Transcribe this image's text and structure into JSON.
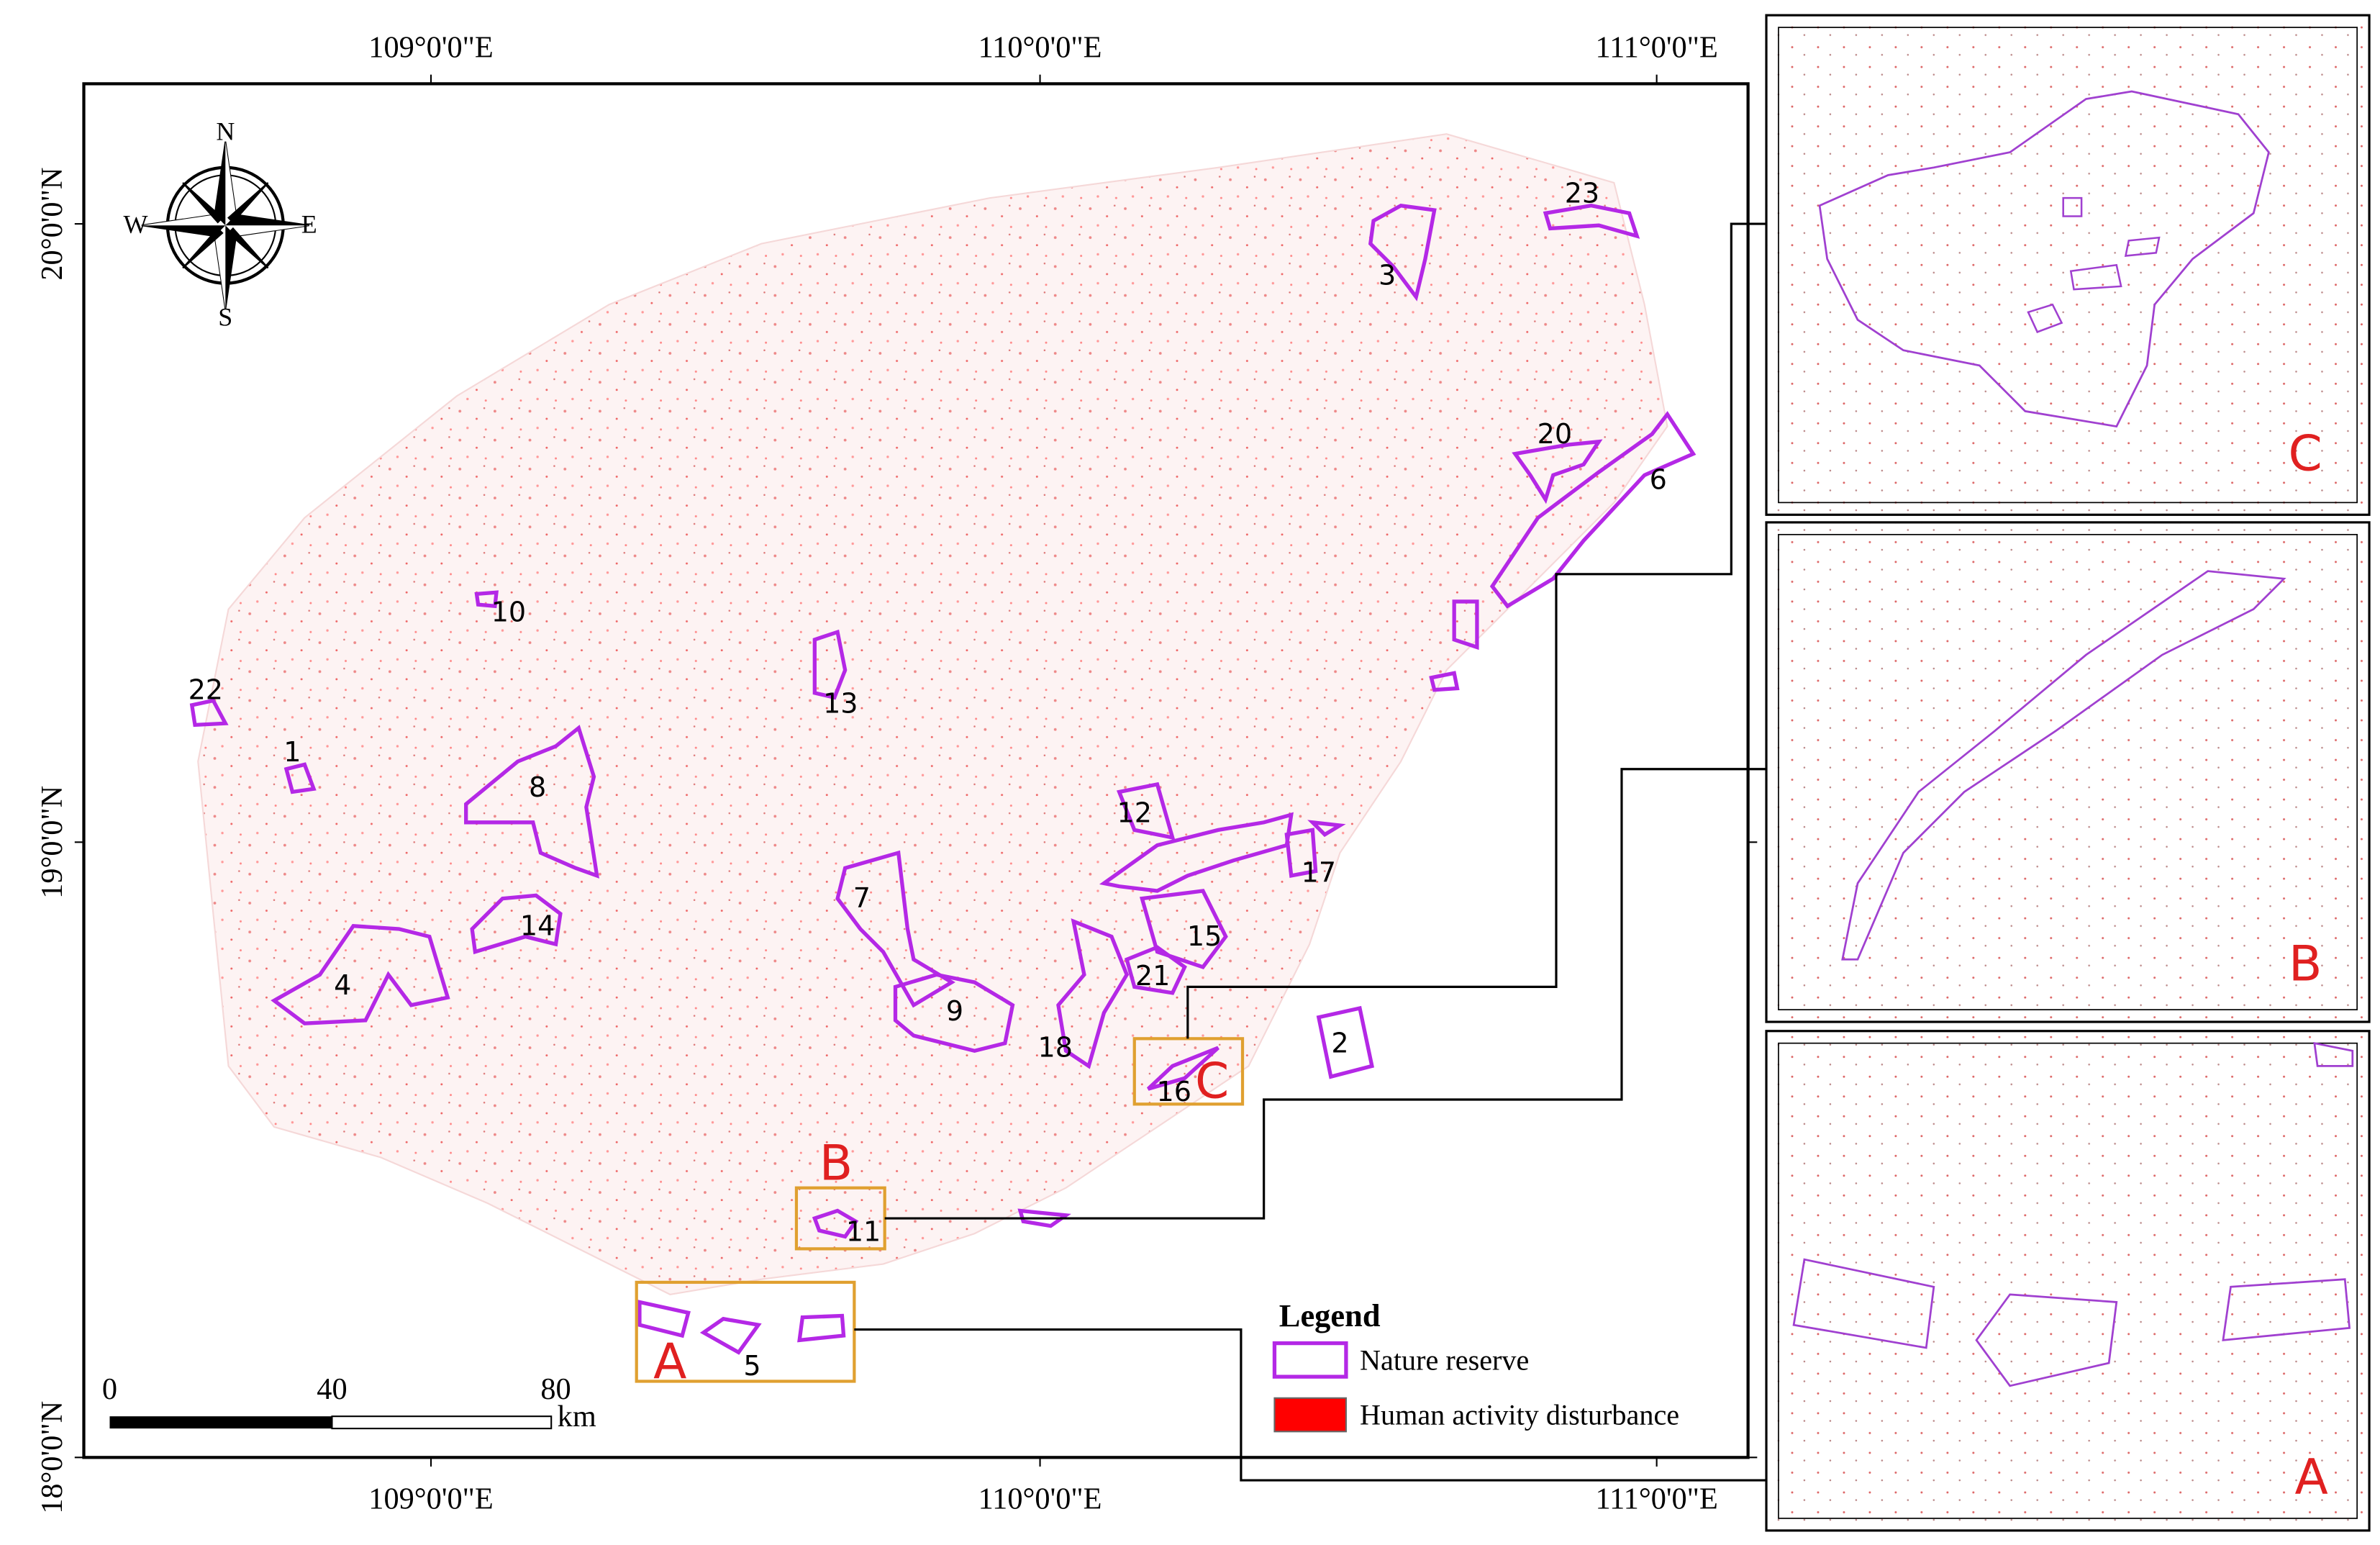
{
  "map": {
    "top_labels": [
      "109°0'0\"E",
      "110°0'0\"E",
      "111°0'0\"E"
    ],
    "bottom_labels": [
      "109°0'0\"E",
      "110°0'0\"E",
      "111°0'0\"E"
    ],
    "left_labels": [
      "20°0'0\"N",
      "19°0'0\"N",
      "18°0'0\"N"
    ],
    "compass": {
      "n": "N",
      "s": "S",
      "e": "E",
      "w": "W"
    },
    "reserves": [
      "1",
      "2",
      "3",
      "4",
      "5",
      "6",
      "7",
      "8",
      "9",
      "10",
      "11",
      "12",
      "13",
      "14",
      "15",
      "16",
      "17",
      "18",
      "20",
      "21",
      "22",
      "23"
    ],
    "boxes": [
      "A",
      "B",
      "C"
    ],
    "insets": [
      "C",
      "B",
      "A"
    ],
    "scale_bar": {
      "ticks": [
        0,
        40,
        80
      ],
      "unit": "km"
    },
    "legend": {
      "title": "Legend",
      "items": [
        "Nature reserve",
        "Human activity disturbance"
      ]
    }
  }
}
